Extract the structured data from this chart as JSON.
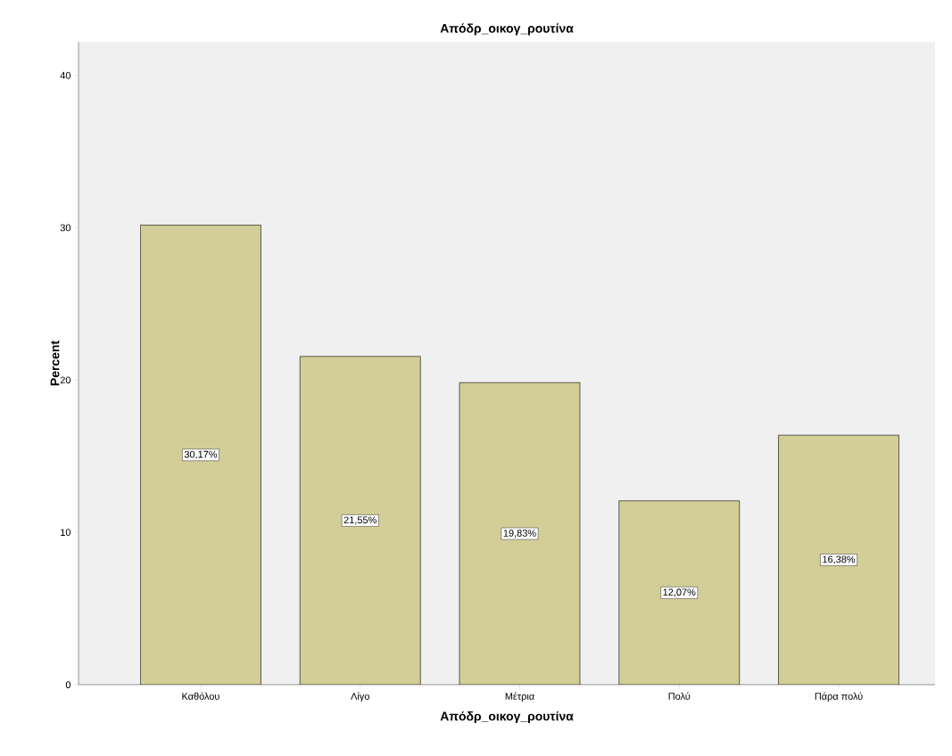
{
  "chart_data": {
    "type": "bar",
    "title": "Απόδρ_οικογ_ρουτίνα",
    "xlabel": "Απόδρ_οικογ_ρουτίνα",
    "ylabel": "Percent",
    "categories": [
      "Καθόλου",
      "Λίγο",
      "Μέτρια",
      "Πολύ",
      "Πάρα πολύ"
    ],
    "values": [
      30.17,
      21.55,
      19.83,
      12.07,
      16.38
    ],
    "value_labels": [
      "30,17%",
      "21,55%",
      "19,83%",
      "12,07%",
      "16,38%"
    ],
    "color": "#d3ce97",
    "ylim": [
      0,
      42.2
    ],
    "yticks": [
      0,
      10,
      20,
      30,
      40
    ],
    "grid": false
  }
}
